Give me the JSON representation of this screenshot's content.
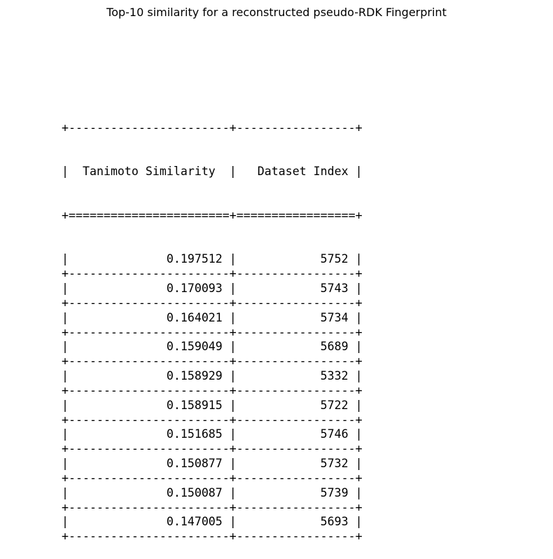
{
  "chart_data": {
    "type": "table",
    "title": "Top-10 similarity for a reconstructed pseudo-RDK Fingerprint",
    "columns": [
      "Tanimoto Similarity",
      "Dataset Index"
    ],
    "rows": [
      [
        "0.197512",
        "5752"
      ],
      [
        "0.170093",
        "5743"
      ],
      [
        "0.164021",
        "5734"
      ],
      [
        "0.159049",
        "5689"
      ],
      [
        "0.158929",
        "5332"
      ],
      [
        "0.158915",
        "5722"
      ],
      [
        "0.151685",
        "5746"
      ],
      [
        "0.150877",
        "5732"
      ],
      [
        "0.150087",
        "5739"
      ],
      [
        "0.147005",
        "5693"
      ]
    ]
  }
}
